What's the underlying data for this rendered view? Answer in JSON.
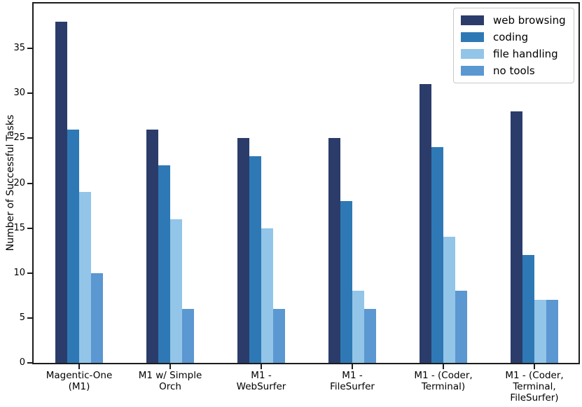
{
  "figure": {
    "background": "#ffffff",
    "axis_color": "#1c1c1c"
  },
  "chart_data": {
    "type": "bar",
    "title": "",
    "xlabel": "",
    "ylabel": "Number of Successful Tasks",
    "ylim": [
      0,
      40
    ],
    "yticks": [
      0,
      5,
      10,
      15,
      20,
      25,
      30,
      35
    ],
    "grid": false,
    "legend_position": "upper right",
    "categories": [
      "Magentic-One\n(M1)",
      "M1 w/ Simple\nOrch",
      "M1 -\nWebSurfer",
      "M1 -\nFileSurfer",
      "M1 - (Coder,\nTerminal)",
      "M1 - (Coder,\nTerminal,\nFileSurfer)"
    ],
    "series": [
      {
        "name": "web browsing",
        "color": "#2b3c6b",
        "values": [
          38,
          26,
          25,
          25,
          31,
          28
        ]
      },
      {
        "name": "coding",
        "color": "#2e79b5",
        "values": [
          26,
          22,
          23,
          18,
          24,
          12
        ]
      },
      {
        "name": "file handling",
        "color": "#92c5e8",
        "values": [
          19,
          16,
          15,
          8,
          14,
          7
        ]
      },
      {
        "name": "no tools",
        "color": "#5b97d1",
        "values": [
          10,
          6,
          6,
          6,
          8,
          7
        ]
      }
    ]
  }
}
